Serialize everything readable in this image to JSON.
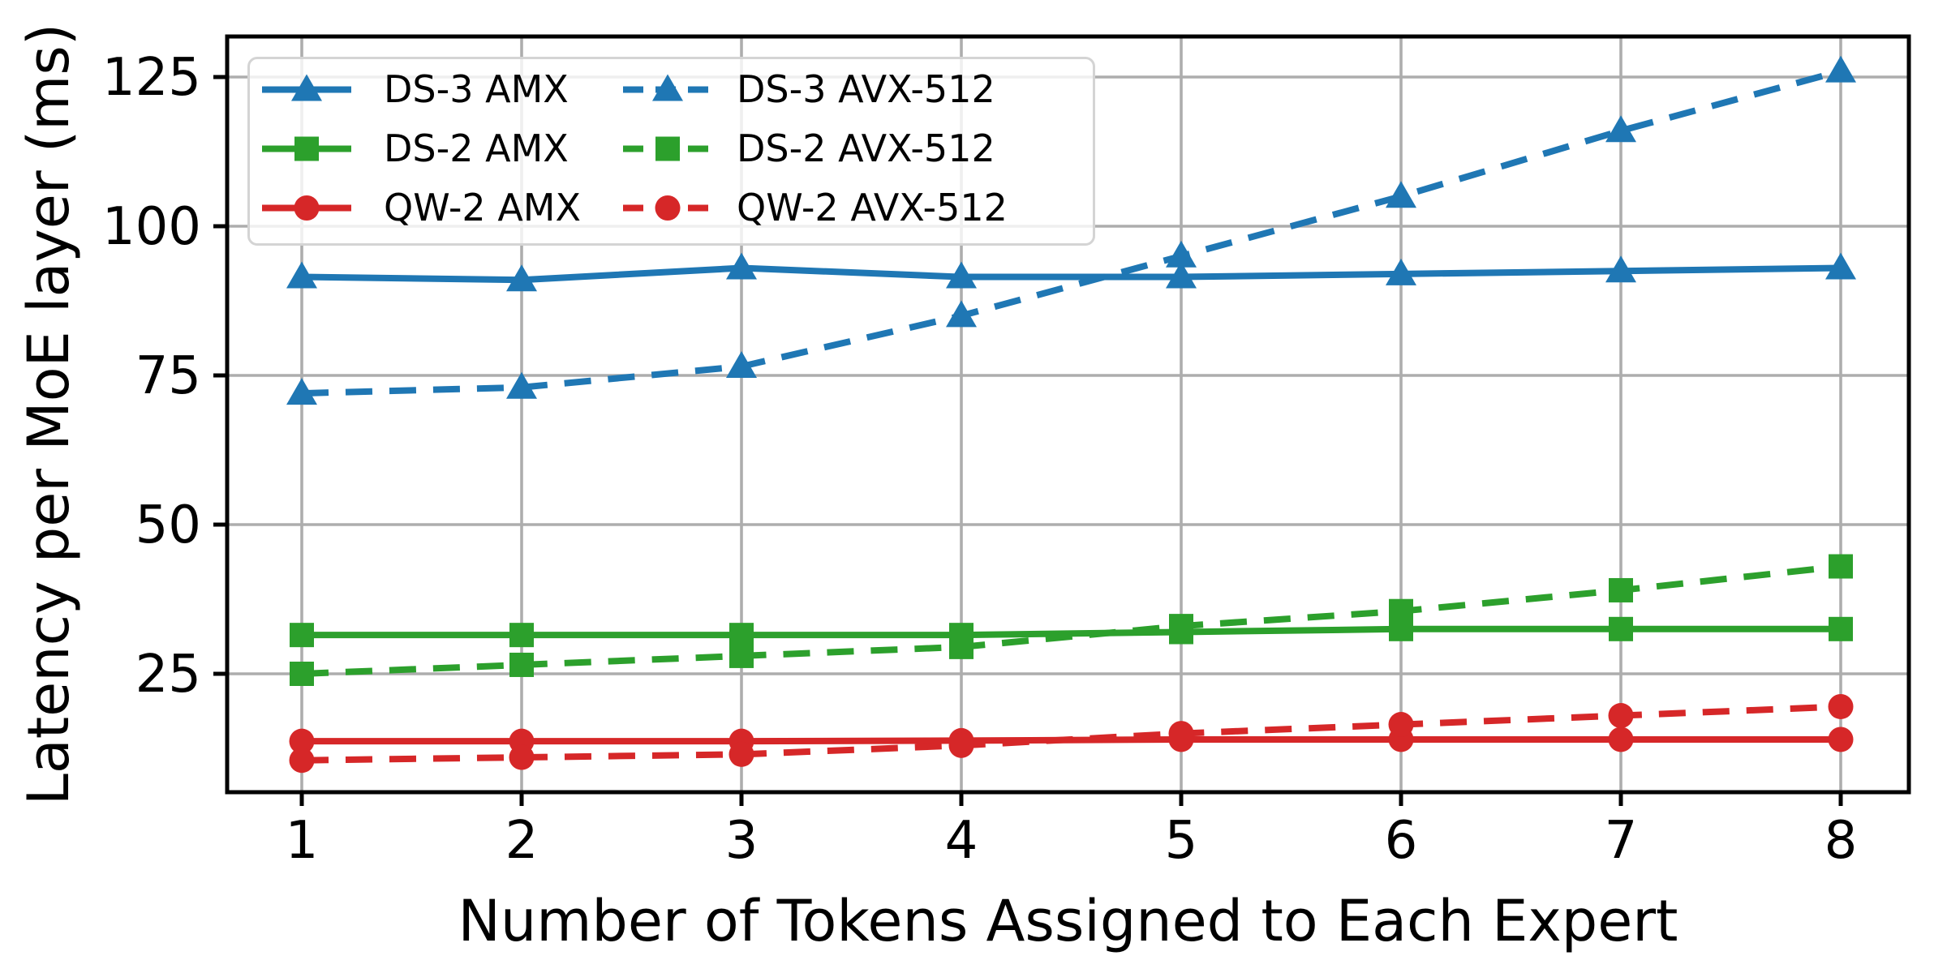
{
  "chart_data": {
    "type": "line",
    "title": "",
    "xlabel": "Number of Tokens Assigned to Each Expert",
    "ylabel": "Latency per MoE layer (ms)",
    "x": [
      1,
      2,
      3,
      4,
      5,
      6,
      7,
      8
    ],
    "xtick_labels": [
      "1",
      "2",
      "3",
      "4",
      "5",
      "6",
      "7",
      "8"
    ],
    "yticks": [
      25,
      50,
      75,
      100,
      125
    ],
    "ytick_labels": [
      "25",
      "50",
      "75",
      "100",
      "125"
    ],
    "xlim": [
      0.66,
      8.31
    ],
    "ylim": [
      5,
      132
    ],
    "grid": true,
    "grid_color": "#adadad",
    "legend_position": "upper-left",
    "legend_ncols": 2,
    "series": [
      {
        "name": "DS-3 AMX",
        "color": "#1f77b4",
        "linestyle": "solid",
        "marker": "triangle",
        "values": [
          91.5,
          91.0,
          93.0,
          91.5,
          91.5,
          92.0,
          92.5,
          93.0
        ]
      },
      {
        "name": "DS-2 AMX",
        "color": "#2ca02c",
        "linestyle": "solid",
        "marker": "square",
        "values": [
          31.5,
          31.5,
          31.5,
          31.5,
          32.0,
          32.5,
          32.5,
          32.5
        ]
      },
      {
        "name": "QW-2 AMX",
        "color": "#d62728",
        "linestyle": "solid",
        "marker": "circle",
        "values": [
          13.7,
          13.7,
          13.7,
          13.8,
          14.0,
          14.0,
          14.0,
          14.0
        ]
      },
      {
        "name": "DS-3 AVX-512",
        "color": "#1f77b4",
        "linestyle": "dashed",
        "marker": "triangle",
        "values": [
          72.0,
          73.0,
          76.5,
          85.0,
          95.0,
          105.0,
          116.0,
          126.0
        ]
      },
      {
        "name": "DS-2 AVX-512",
        "color": "#2ca02c",
        "linestyle": "dashed",
        "marker": "square",
        "values": [
          25.0,
          26.5,
          28.0,
          29.5,
          33.0,
          35.5,
          39.0,
          43.0
        ]
      },
      {
        "name": "QW-2 AVX-512",
        "color": "#d62728",
        "linestyle": "dashed",
        "marker": "circle",
        "values": [
          10.5,
          11.0,
          11.5,
          13.0,
          15.0,
          16.5,
          18.0,
          19.5
        ]
      }
    ]
  },
  "style": {
    "spine_color": "#000000",
    "tick_color": "#000000",
    "background": "#ffffff"
  }
}
